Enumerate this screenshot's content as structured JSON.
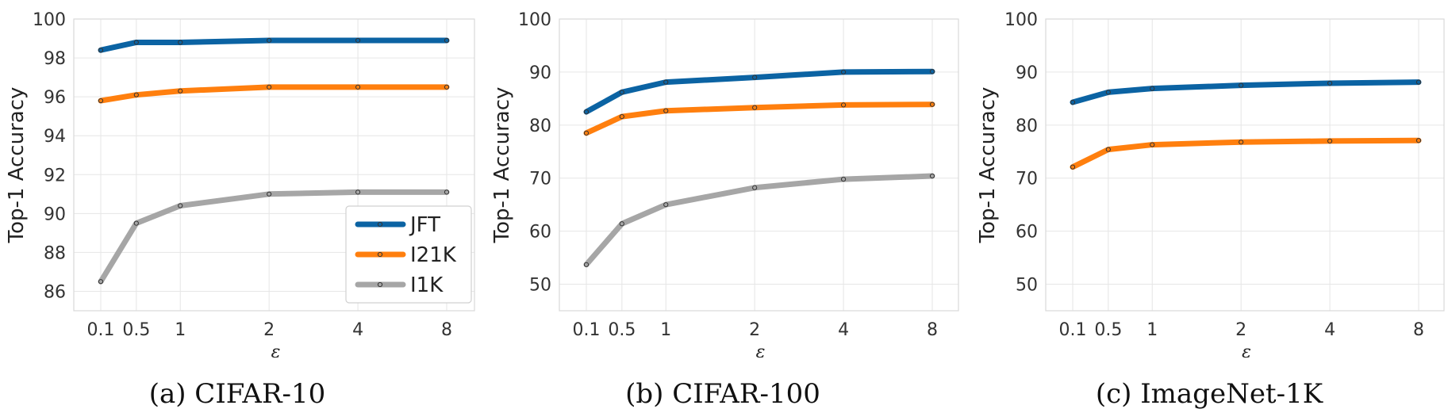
{
  "chart_data": [
    {
      "type": "line",
      "caption": "(a) CIFAR-10",
      "xlabel": "ε",
      "ylabel": "Top-1 Accuracy",
      "x": [
        0.1,
        0.5,
        1,
        2,
        4,
        8
      ],
      "xticklabels": [
        "0.1",
        "0.5",
        "1",
        "2",
        "4",
        "8"
      ],
      "ylim": [
        85,
        100
      ],
      "yticks": [
        86,
        88,
        90,
        92,
        94,
        96,
        98,
        100
      ],
      "grid": true,
      "legend": "lower-right",
      "series": [
        {
          "name": "JFT",
          "color": "#0b63a3",
          "values": [
            98.4,
            98.8,
            98.8,
            98.9,
            98.9,
            98.9
          ]
        },
        {
          "name": "I21K",
          "color": "#ff7f0e",
          "values": [
            95.8,
            96.1,
            96.3,
            96.5,
            96.5,
            96.5
          ]
        },
        {
          "name": "I1K",
          "color": "#a6a6a6",
          "values": [
            86.5,
            89.5,
            90.4,
            91.0,
            91.1,
            91.1
          ]
        }
      ]
    },
    {
      "type": "line",
      "caption": "(b) CIFAR-100",
      "xlabel": "ε",
      "ylabel": "Top-1 Accuracy",
      "x": [
        0.1,
        0.5,
        1,
        2,
        4,
        8
      ],
      "xticklabels": [
        "0.1",
        "0.5",
        "1",
        "2",
        "4",
        "8"
      ],
      "ylim": [
        45,
        100
      ],
      "yticks": [
        50,
        60,
        70,
        80,
        90,
        100
      ],
      "grid": true,
      "series": [
        {
          "name": "JFT",
          "color": "#0b63a3",
          "values": [
            82.5,
            86.2,
            88.1,
            89.0,
            90.0,
            90.1
          ]
        },
        {
          "name": "I21K",
          "color": "#ff7f0e",
          "values": [
            78.5,
            81.6,
            82.7,
            83.3,
            83.8,
            83.9
          ]
        },
        {
          "name": "I1K",
          "color": "#a6a6a6",
          "values": [
            53.7,
            61.4,
            65.0,
            68.2,
            69.8,
            70.4
          ]
        }
      ]
    },
    {
      "type": "line",
      "caption": "(c) ImageNet-1K",
      "xlabel": "ε",
      "ylabel": "Top-1 Accuracy",
      "x": [
        0.1,
        0.5,
        1,
        2,
        4,
        8
      ],
      "xticklabels": [
        "0.1",
        "0.5",
        "1",
        "2",
        "4",
        "8"
      ],
      "ylim": [
        45,
        100
      ],
      "yticks": [
        50,
        60,
        70,
        80,
        90,
        100
      ],
      "grid": true,
      "series": [
        {
          "name": "JFT",
          "color": "#0b63a3",
          "values": [
            84.3,
            86.2,
            86.9,
            87.5,
            87.9,
            88.1
          ]
        },
        {
          "name": "I21K",
          "color": "#ff7f0e",
          "values": [
            72.1,
            75.4,
            76.3,
            76.8,
            77.0,
            77.1
          ]
        }
      ]
    }
  ]
}
